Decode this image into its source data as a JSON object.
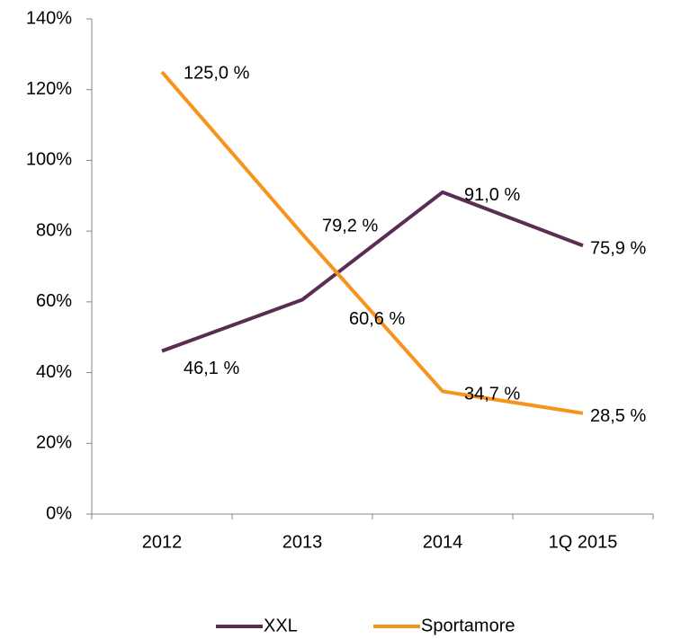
{
  "chart_data": {
    "type": "line",
    "categories": [
      "2012",
      "2013",
      "2014",
      "1Q 2015"
    ],
    "series": [
      {
        "name": "XXL",
        "color": "#5a2d52",
        "values": [
          46.1,
          60.6,
          91.0,
          75.9
        ],
        "value_labels": [
          "46,1 %",
          "60,6 %",
          "91,0 %",
          "75,9 %"
        ]
      },
      {
        "name": "Sportamore",
        "color": "#f7941d",
        "values": [
          125.0,
          79.2,
          34.7,
          28.5
        ],
        "value_labels": [
          "125,0 %",
          "79,2 %",
          "34,7 %",
          "28,5 %"
        ]
      }
    ],
    "ylim": [
      0,
      140
    ],
    "yticks": [
      {
        "value": 0,
        "label": "0%"
      },
      {
        "value": 20,
        "label": "20%"
      },
      {
        "value": 40,
        "label": "40%"
      },
      {
        "value": 60,
        "label": "60%"
      },
      {
        "value": 80,
        "label": "80%"
      },
      {
        "value": 100,
        "label": "100%"
      },
      {
        "value": 120,
        "label": "120%"
      },
      {
        "value": 140,
        "label": "140%"
      }
    ],
    "grid": false,
    "legend": "bottom"
  }
}
